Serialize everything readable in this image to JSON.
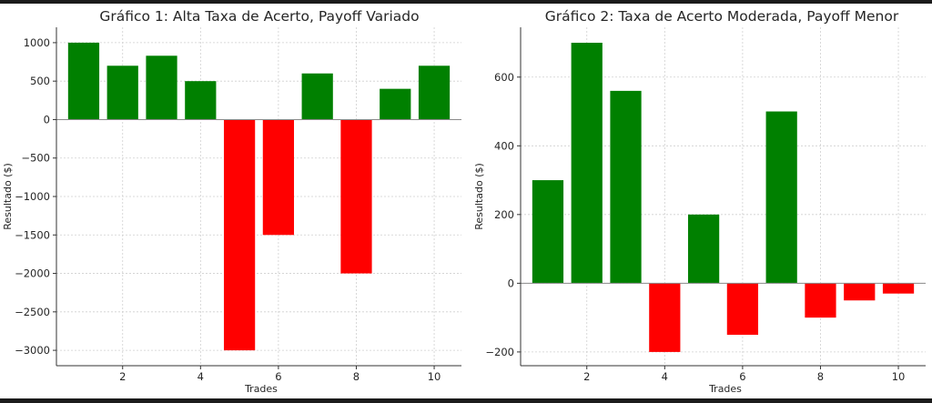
{
  "chart_data": [
    {
      "type": "bar",
      "title": "Gráfico 1: Alta Taxa de Acerto, Payoff Variado",
      "xlabel": "Trades",
      "ylabel": "Resultado ($)",
      "x": [
        1,
        2,
        3,
        4,
        5,
        6,
        7,
        8,
        9,
        10
      ],
      "values": [
        1000,
        700,
        830,
        500,
        -3000,
        -1500,
        600,
        -2000,
        400,
        700
      ],
      "xticks": [
        2,
        4,
        6,
        8,
        10
      ],
      "yticks": [
        1000,
        500,
        0,
        -500,
        -1000,
        -1500,
        -2000,
        -2500,
        -3000
      ],
      "ytick_labels": [
        "1000",
        "500",
        "0",
        "−500",
        "−1000",
        "−1500",
        "−2000",
        "−2500",
        "−3000"
      ],
      "xlim": [
        0.3,
        10.7
      ],
      "ylim": [
        -3200,
        1200
      ],
      "grid": true,
      "colors": {
        "positive": "#008000",
        "negative": "#ff0000"
      }
    },
    {
      "type": "bar",
      "title": "Gráfico 2: Taxa de Acerto Moderada, Payoff Menor",
      "xlabel": "Trades",
      "ylabel": "Resultado ($)",
      "x": [
        1,
        2,
        3,
        4,
        5,
        6,
        7,
        8,
        9,
        10
      ],
      "values": [
        300,
        700,
        560,
        -200,
        200,
        -150,
        500,
        -100,
        -50,
        -30
      ],
      "xticks": [
        2,
        4,
        6,
        8,
        10
      ],
      "yticks": [
        600,
        400,
        200,
        0,
        -200
      ],
      "ytick_labels": [
        "600",
        "400",
        "200",
        "0",
        "−200"
      ],
      "xlim": [
        0.3,
        10.7
      ],
      "ylim": [
        -240,
        745
      ],
      "grid": true,
      "colors": {
        "positive": "#008000",
        "negative": "#ff0000"
      }
    }
  ]
}
